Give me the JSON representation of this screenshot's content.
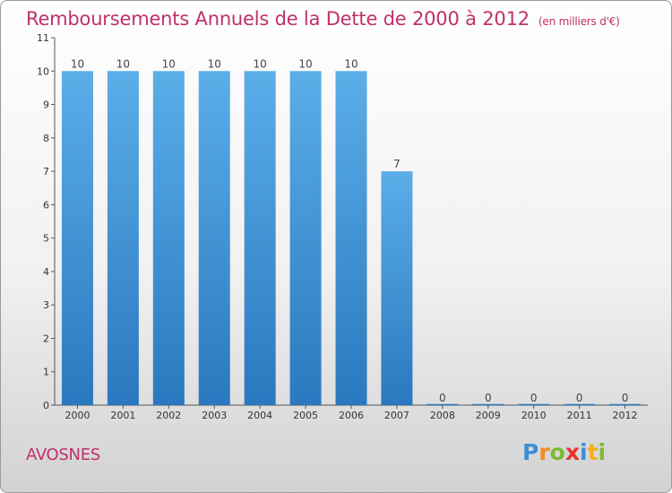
{
  "header": {
    "title": "Remboursements Annuels de la Dette de 2000 à 2012",
    "unit": "(en milliers d'€)"
  },
  "footer": {
    "commune": "AVOSNES",
    "logo_text": "Proxiti"
  },
  "colors": {
    "title": "#c0306a",
    "bar_top": "#5baee8",
    "bar_bottom": "#2a78bf"
  },
  "chart_data": {
    "type": "bar",
    "title": "Remboursements Annuels de la Dette de 2000 à 2012",
    "xlabel": "",
    "ylabel": "",
    "categories": [
      "2000",
      "2001",
      "2002",
      "2003",
      "2004",
      "2005",
      "2006",
      "2007",
      "2008",
      "2009",
      "2010",
      "2011",
      "2012"
    ],
    "values": [
      10,
      10,
      10,
      10,
      10,
      10,
      10,
      7,
      0,
      0,
      0,
      0,
      0
    ],
    "data_labels": [
      "10",
      "10",
      "10",
      "10",
      "10",
      "10",
      "10",
      "7",
      "0",
      "0",
      "0",
      "0",
      "0"
    ],
    "ylim": [
      0,
      11
    ],
    "yticks": [
      0,
      1,
      2,
      3,
      4,
      5,
      6,
      7,
      8,
      9,
      10,
      11
    ],
    "grid": false,
    "legend": "none"
  }
}
